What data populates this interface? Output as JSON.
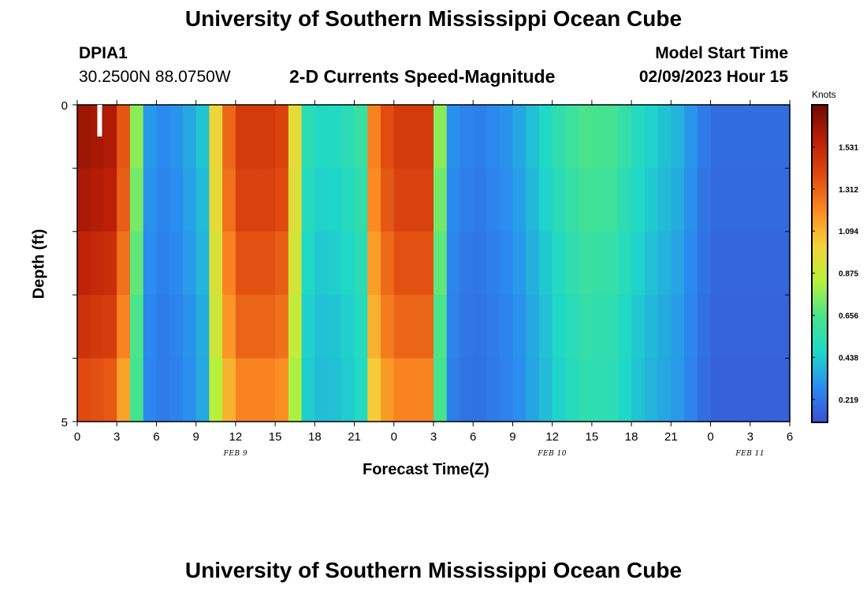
{
  "title": "University of Southern Mississippi Ocean Cube",
  "footer_title": "University of Southern Mississippi Ocean Cube",
  "station": {
    "id": "DPIA1",
    "coords": "30.2500N  88.0750W"
  },
  "subtitle": "2-D Currents Speed-Magnitude",
  "model": {
    "label": "Model Start Time",
    "time": "02/09/2023 Hour 15"
  },
  "chart_data": {
    "type": "heatmap",
    "title": "2-D Currents Speed-Magnitude",
    "xlabel": "Forecast Time(Z)",
    "ylabel": "Depth (ft)",
    "x_hours": [
      0,
      48
    ],
    "x_ticks": [
      "0",
      "3",
      "6",
      "9",
      "12",
      "15",
      "18",
      "21",
      "0",
      "3",
      "6",
      "9",
      "12",
      "15",
      "18",
      "21",
      "0",
      "3",
      "6"
    ],
    "x_tick_hours": [
      0,
      3,
      6,
      9,
      12,
      15,
      18,
      21,
      24,
      27,
      30,
      33,
      36,
      39,
      42,
      45,
      48,
      51,
      54
    ],
    "date_labels": [
      {
        "text": "FEB 9",
        "hour": 12
      },
      {
        "text": "FEB 10",
        "hour": 36
      },
      {
        "text": "FEB 11",
        "hour": 51
      }
    ],
    "y_ticks": [
      "0",
      "5"
    ],
    "y_range": [
      0,
      5
    ],
    "depth_layers": 5,
    "colorbar": {
      "label": "Knots",
      "min": 0.1,
      "max": 1.75,
      "ticks": [
        0.219,
        0.438,
        0.656,
        0.875,
        1.094,
        1.312,
        1.531
      ],
      "tick_labels": [
        "0.219",
        "0.438",
        "0.656",
        "0.875",
        "1.094",
        "1.312",
        "1.531"
      ],
      "colors": [
        "#3a4fd0",
        "#2a8cf0",
        "#1ed8c8",
        "#48e48c",
        "#b6f23a",
        "#f4d23a",
        "#fb8a22",
        "#e04a10",
        "#bb1e06",
        "#6e0a02"
      ]
    },
    "time_profile_knots": [
      [
        0,
        1.62
      ],
      [
        3,
        1.55
      ],
      [
        4,
        1.1
      ],
      [
        5,
        0.35
      ],
      [
        6,
        0.25
      ],
      [
        8,
        0.3
      ],
      [
        9.5,
        0.4
      ],
      [
        10,
        0.75
      ],
      [
        11,
        1.2
      ],
      [
        12.5,
        1.42
      ],
      [
        15,
        1.42
      ],
      [
        16,
        1.35
      ],
      [
        16.5,
        0.95
      ],
      [
        17,
        0.55
      ],
      [
        18,
        0.45
      ],
      [
        20,
        0.47
      ],
      [
        21.5,
        0.55
      ],
      [
        22.5,
        1.2
      ],
      [
        24,
        1.42
      ],
      [
        26.5,
        1.42
      ],
      [
        27,
        1.15
      ],
      [
        28,
        0.3
      ],
      [
        30,
        0.22
      ],
      [
        33,
        0.3
      ],
      [
        35,
        0.42
      ],
      [
        37,
        0.55
      ],
      [
        38.5,
        0.62
      ],
      [
        40.5,
        0.6
      ],
      [
        42,
        0.5
      ],
      [
        43.5,
        0.43
      ],
      [
        45.5,
        0.36
      ],
      [
        47,
        0.26
      ],
      [
        48,
        0.18
      ]
    ],
    "depth_factors": [
      1.02,
      1.0,
      0.96,
      0.92,
      0.86,
      0.8
    ],
    "low_depth_factors": [
      1.05,
      1.0,
      0.95,
      0.9,
      0.88,
      0.82
    ],
    "marker": {
      "hour": 1.7,
      "layer": 0
    }
  }
}
